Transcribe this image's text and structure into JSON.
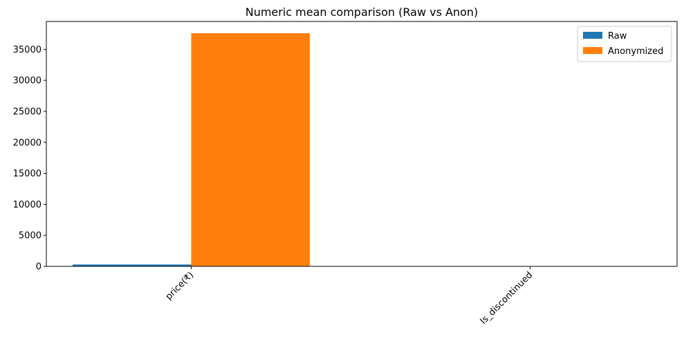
{
  "chart_data": {
    "type": "bar",
    "title": "Numeric mean comparison (Raw vs Anon)",
    "xlabel": "",
    "ylabel": "",
    "categories": [
      "price(₹)",
      "Is_discontinued"
    ],
    "series": [
      {
        "name": "Raw",
        "values": [
          300,
          0.1
        ],
        "color": "#1f77b4"
      },
      {
        "name": "Anonymized",
        "values": [
          37600,
          0.1
        ],
        "color": "#ff7f0e"
      }
    ],
    "ylim": [
      0,
      39500
    ],
    "yticks": [
      0,
      5000,
      10000,
      15000,
      20000,
      25000,
      30000,
      35000
    ],
    "ytick_labels": [
      "0",
      "5000",
      "10000",
      "15000",
      "20000",
      "25000",
      "30000",
      "35000"
    ],
    "grid": false,
    "legend_position": "top-right",
    "xtick_rotation": 45
  }
}
